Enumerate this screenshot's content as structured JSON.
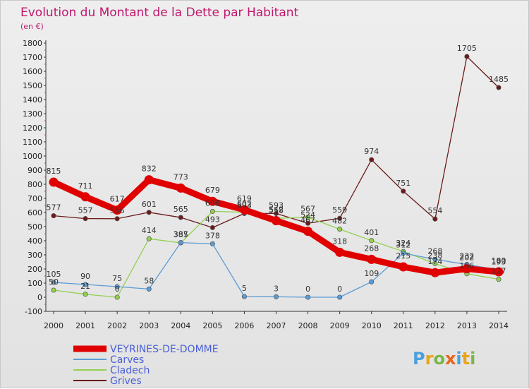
{
  "chart_data": {
    "type": "line",
    "title": "Evolution du Montant de la Dette par Habitant",
    "subtitle": "(en €)",
    "x": [
      "2000",
      "2001",
      "2002",
      "2003",
      "2004",
      "2005",
      "2006",
      "2007",
      "2008",
      "2009",
      "2010",
      "2011",
      "2012",
      "2013",
      "2014"
    ],
    "ylim": [
      -100,
      1800
    ],
    "yticks": [
      -100,
      0,
      100,
      200,
      300,
      400,
      500,
      600,
      700,
      800,
      900,
      1000,
      1100,
      1200,
      1300,
      1400,
      1500,
      1600,
      1700,
      1800
    ],
    "grid": false,
    "legend_position": "bottom-left",
    "series": [
      {
        "name": "VEYRINES-DE-DOMME",
        "color": "#e00000",
        "values": [
          815,
          711,
          617,
          832,
          773,
          679,
          619,
          542,
          467,
          318,
          268,
          215,
          174,
          202,
          180
        ]
      },
      {
        "name": "Carves",
        "color": "#5b9bd5",
        "values": [
          105,
          90,
          75,
          58,
          387,
          378,
          5,
          3,
          0,
          0,
          109,
          312,
          268,
          232,
          193
        ]
      },
      {
        "name": "Cladech",
        "color": "#92d050",
        "values": [
          50,
          21,
          0,
          414,
          385,
          608,
          602,
          558,
          567,
          482,
          401,
          324,
          238,
          166,
          127
        ]
      },
      {
        "name": "Grives",
        "color": "#6b1a1a",
        "values": [
          577,
          557,
          556,
          601,
          565,
          493,
          593,
          593,
          524,
          559,
          974,
          751,
          554,
          1705,
          1485
        ]
      }
    ]
  },
  "logo": {
    "text": "Proxiti",
    "letter_colors": [
      "#4aa0dd",
      "#e8a41c",
      "#7ab648",
      "#e8651c",
      "#4aa0dd",
      "#e8a41c",
      "#7ab648"
    ]
  }
}
